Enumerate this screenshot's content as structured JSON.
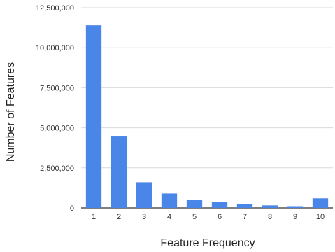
{
  "chart_data": {
    "type": "bar",
    "title": "",
    "xlabel": "Feature Frequency",
    "ylabel": "Number of Features",
    "categories": [
      "1",
      "2",
      "3",
      "4",
      "5",
      "6",
      "7",
      "8",
      "9",
      "10"
    ],
    "values": [
      11400000,
      4500000,
      1600000,
      900000,
      480000,
      360000,
      230000,
      160000,
      110000,
      600000
    ],
    "ylim": [
      0,
      12500000
    ],
    "yticks": [
      0,
      2500000,
      5000000,
      7500000,
      10000000,
      12500000
    ],
    "ytick_labels": [
      "0",
      "2,500,000",
      "5,000,000",
      "7,500,000",
      "10,000,000",
      "12,500,000"
    ],
    "grid": true,
    "legend": "none",
    "colors": {
      "bar": "#4a86e8",
      "grid": "#d9d9d9",
      "axis": "#333333"
    }
  }
}
